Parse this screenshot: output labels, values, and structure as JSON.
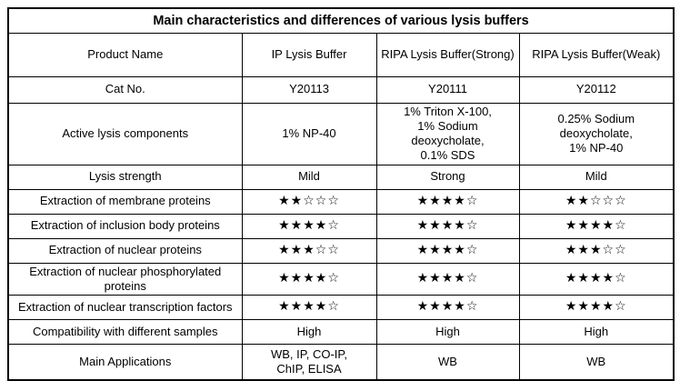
{
  "title": "Main characteristics and differences of various lysis buffers",
  "table": {
    "header": {
      "label": "Product Name",
      "columns": [
        "IP Lysis Buffer",
        "RIPA Lysis Buffer(Strong)",
        "RIPA Lysis Buffer(Weak)"
      ]
    },
    "rows": [
      {
        "label": "Cat No.",
        "values": [
          "Y20113",
          "Y20111",
          "Y20112"
        ]
      },
      {
        "label": "Active lysis components",
        "values": [
          "1% NP-40",
          "1% Triton X-100,\n1% Sodium deoxycholate,\n0.1% SDS",
          "0.25% Sodium deoxycholate,\n1% NP-40"
        ]
      },
      {
        "label": "Lysis strength",
        "values": [
          "Mild",
          "Strong",
          "Mild"
        ]
      },
      {
        "label": "Extraction of membrane proteins",
        "values": [
          "★★☆☆☆",
          "★★★★☆",
          "★★☆☆☆"
        ],
        "stars": true
      },
      {
        "label": "Extraction of inclusion body proteins",
        "values": [
          "★★★★☆",
          "★★★★☆",
          "★★★★☆"
        ],
        "stars": true
      },
      {
        "label": "Extraction of nuclear proteins",
        "values": [
          "★★★☆☆",
          "★★★★☆",
          "★★★☆☆"
        ],
        "stars": true
      },
      {
        "label": "Extraction of nuclear phosphorylated proteins",
        "values": [
          "★★★★☆",
          "★★★★☆",
          "★★★★☆"
        ],
        "stars": true
      },
      {
        "label": "Extraction of nuclear transcription factors",
        "values": [
          "★★★★☆",
          "★★★★☆",
          "★★★★☆"
        ],
        "stars": true
      },
      {
        "label": "Compatibility with different samples",
        "values": [
          "High",
          "High",
          "High"
        ]
      },
      {
        "label": "Main Applications",
        "values": [
          "WB, IP, CO-IP,\nChIP, ELISA",
          "WB",
          "WB"
        ]
      }
    ],
    "star_ratings_filled_of_5": {
      "membrane_proteins": [
        2,
        4,
        2
      ],
      "inclusion_body_proteins": [
        4,
        4,
        4
      ],
      "nuclear_proteins": [
        3,
        4,
        3
      ],
      "nuclear_phosphorylated_proteins": [
        4,
        4,
        4
      ],
      "nuclear_transcription_factors": [
        4,
        4,
        4
      ]
    }
  },
  "colors": {
    "border": "#000000",
    "text": "#000000",
    "background": "#ffffff"
  }
}
